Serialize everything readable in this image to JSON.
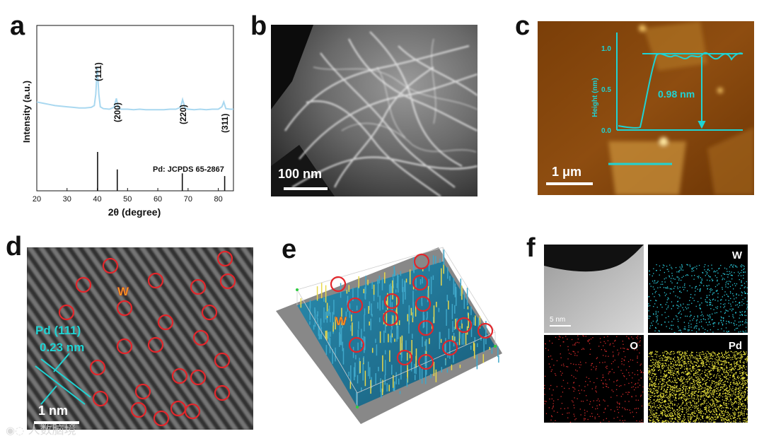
{
  "panel_labels": [
    "a",
    "b",
    "c",
    "d",
    "e",
    "f"
  ],
  "colors": {
    "xrd_line": "#a9d8f0",
    "cyan": "#1fd3d3",
    "red_circle": "#e3262b",
    "w_label": "#f5a623"
  },
  "chart_data": {
    "type": "line",
    "title": "",
    "xlabel": "2θ (degree)",
    "ylabel": "Intensity (a.u.)",
    "xlim": [
      20,
      85
    ],
    "xticks": [
      20,
      30,
      40,
      50,
      60,
      70,
      80
    ],
    "series": [
      {
        "x": [
          20,
          22,
          24,
          26,
          28,
          30,
          32,
          34,
          36,
          38,
          39,
          39.5,
          40,
          40.5,
          41,
          42,
          44,
          45.5,
          46.3,
          47,
          48,
          50,
          52,
          54,
          56,
          58,
          60,
          62,
          64,
          66,
          67.5,
          68.2,
          69,
          70,
          72,
          74,
          76,
          78,
          80,
          81.2,
          81.8,
          82.5,
          84,
          85
        ],
        "y": [
          0.42,
          0.4,
          0.38,
          0.36,
          0.35,
          0.34,
          0.33,
          0.32,
          0.32,
          0.33,
          0.36,
          0.55,
          1.0,
          0.55,
          0.34,
          0.31,
          0.3,
          0.33,
          0.48,
          0.31,
          0.3,
          0.3,
          0.29,
          0.3,
          0.29,
          0.29,
          0.29,
          0.29,
          0.3,
          0.3,
          0.33,
          0.46,
          0.32,
          0.3,
          0.29,
          0.3,
          0.29,
          0.3,
          0.3,
          0.34,
          0.42,
          0.31,
          0.3,
          0.3
        ]
      }
    ],
    "peak_labels": [
      {
        "x": 40.1,
        "text": "(111)"
      },
      {
        "x": 46.6,
        "text": "(200)"
      },
      {
        "x": 68.1,
        "text": "(220)"
      },
      {
        "x": 82.1,
        "text": "(311)"
      }
    ],
    "reference": {
      "label": "Pd: JCPDS 65-2867",
      "x": [
        40.1,
        46.6,
        68.1,
        82.1
      ],
      "heights": [
        1.0,
        0.55,
        0.45,
        0.38
      ]
    }
  },
  "panel_b": {
    "scale_label": "100 nm"
  },
  "panel_c": {
    "scale_label": "1 μm",
    "height_label": "0.98 nm",
    "axis_label": "Height (nm)",
    "ticks": [
      "1.0",
      "0.5",
      "0.0"
    ]
  },
  "panel_d": {
    "pd_label": "Pd (111)",
    "spacing_label": "0.23 nm",
    "w_label": "W",
    "scale_label": "1 nm"
  },
  "panel_e": {
    "w_label": "W"
  },
  "panel_f": {
    "scale_label": "5 nm",
    "maps": [
      "W",
      "O",
      "Pd"
    ]
  },
  "watermark": "人数脑境"
}
